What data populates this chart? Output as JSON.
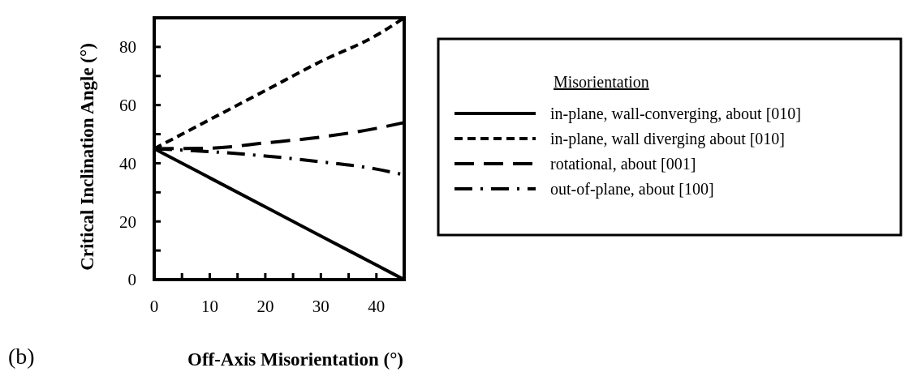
{
  "chart_data": {
    "type": "line",
    "xlabel": "Off-Axis Misorientation (°)",
    "ylabel": "Critical Inclination Angle (°)",
    "legend_title": "Misorientation",
    "legend": "right",
    "annotations": [
      "(b)"
    ],
    "x": [
      0,
      10,
      20,
      30,
      40,
      45
    ],
    "xlim": [
      0,
      45
    ],
    "xticks": [
      0,
      {
        "value": 5,
        "label": null
      },
      10,
      {
        "value": 15,
        "label": null
      },
      20,
      {
        "value": 25,
        "label": null
      },
      30,
      {
        "value": 35,
        "label": null
      },
      40
    ],
    "ylim": [
      0,
      90
    ],
    "yticks": [
      0,
      {
        "value": 10,
        "label": null
      },
      20,
      {
        "value": 30,
        "label": null
      },
      40,
      {
        "value": 50,
        "label": null
      },
      60,
      {
        "value": 70,
        "label": null
      },
      80
    ],
    "series": [
      {
        "name": "in-plane, wall-converging, about [010]",
        "color": "#000000",
        "line_style": "solid",
        "values": [
          45,
          35,
          25,
          15,
          5,
          0
        ]
      },
      {
        "name": "in-plane, wall diverging about [010]",
        "color": "#000000",
        "line_style": "dashed",
        "values": [
          45,
          55,
          65,
          75,
          84,
          90
        ]
      },
      {
        "name": "rotational, about [001]",
        "color": "#000000",
        "line_style": "longdash",
        "values": [
          45,
          45.2,
          47,
          49,
          52,
          54
        ]
      },
      {
        "name": "out-of-plane, about [100]",
        "color": "#000000",
        "line_style": "dashdot",
        "values": [
          45,
          44,
          42.5,
          40.5,
          38,
          36
        ]
      }
    ]
  }
}
